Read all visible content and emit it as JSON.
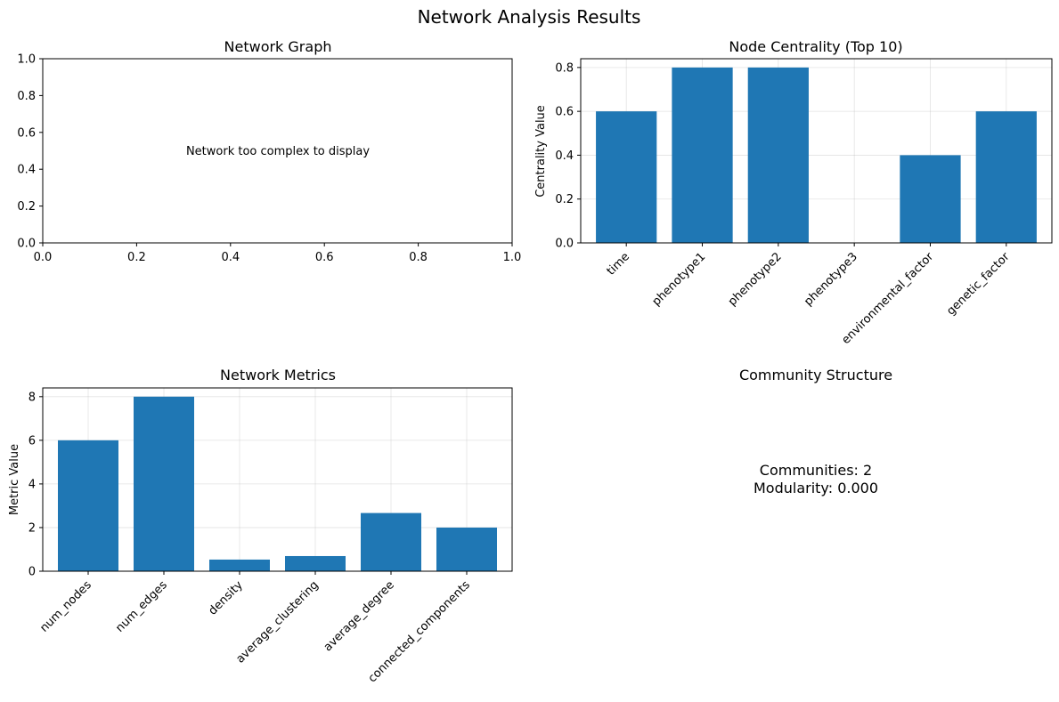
{
  "suptitle": "Network Analysis Results",
  "colors": {
    "bar": "#1f77b4",
    "grid": "#b0b0b0",
    "axis": "#000000"
  },
  "chart_data": [
    {
      "type": "scatter",
      "title": "Network Graph",
      "xlim": [
        0,
        1
      ],
      "ylim": [
        0,
        1
      ],
      "xticks": [
        "0.0",
        "0.2",
        "0.4",
        "0.6",
        "0.8",
        "1.0"
      ],
      "yticks": [
        "0.0",
        "0.2",
        "0.4",
        "0.6",
        "0.8",
        "1.0"
      ],
      "annotation": "Network too complex to display",
      "grid": false
    },
    {
      "type": "bar",
      "title": "Node Centrality (Top 10)",
      "ylabel": "Centrality Value",
      "categories": [
        "time",
        "phenotype1",
        "phenotype2",
        "phenotype3",
        "environmental_factor",
        "genetic_factor"
      ],
      "values": [
        0.6,
        0.8,
        0.8,
        0.0,
        0.4,
        0.6
      ],
      "ylim": [
        0,
        0.84
      ],
      "yticks": [
        "0.0",
        "0.2",
        "0.4",
        "0.6",
        "0.8"
      ],
      "grid": true
    },
    {
      "type": "bar",
      "title": "Network Metrics",
      "ylabel": "Metric Value",
      "categories": [
        "num_nodes",
        "num_edges",
        "density",
        "average_clustering",
        "average_degree",
        "connected_components"
      ],
      "values": [
        6,
        8,
        0.533,
        0.694,
        2.667,
        2
      ],
      "ylim": [
        0,
        8.4
      ],
      "yticks": [
        "0",
        "2",
        "4",
        "6",
        "8"
      ],
      "grid": true
    },
    {
      "type": "table",
      "title": "Community Structure",
      "lines": [
        "Communities: 2",
        "Modularity: 0.000"
      ]
    }
  ]
}
